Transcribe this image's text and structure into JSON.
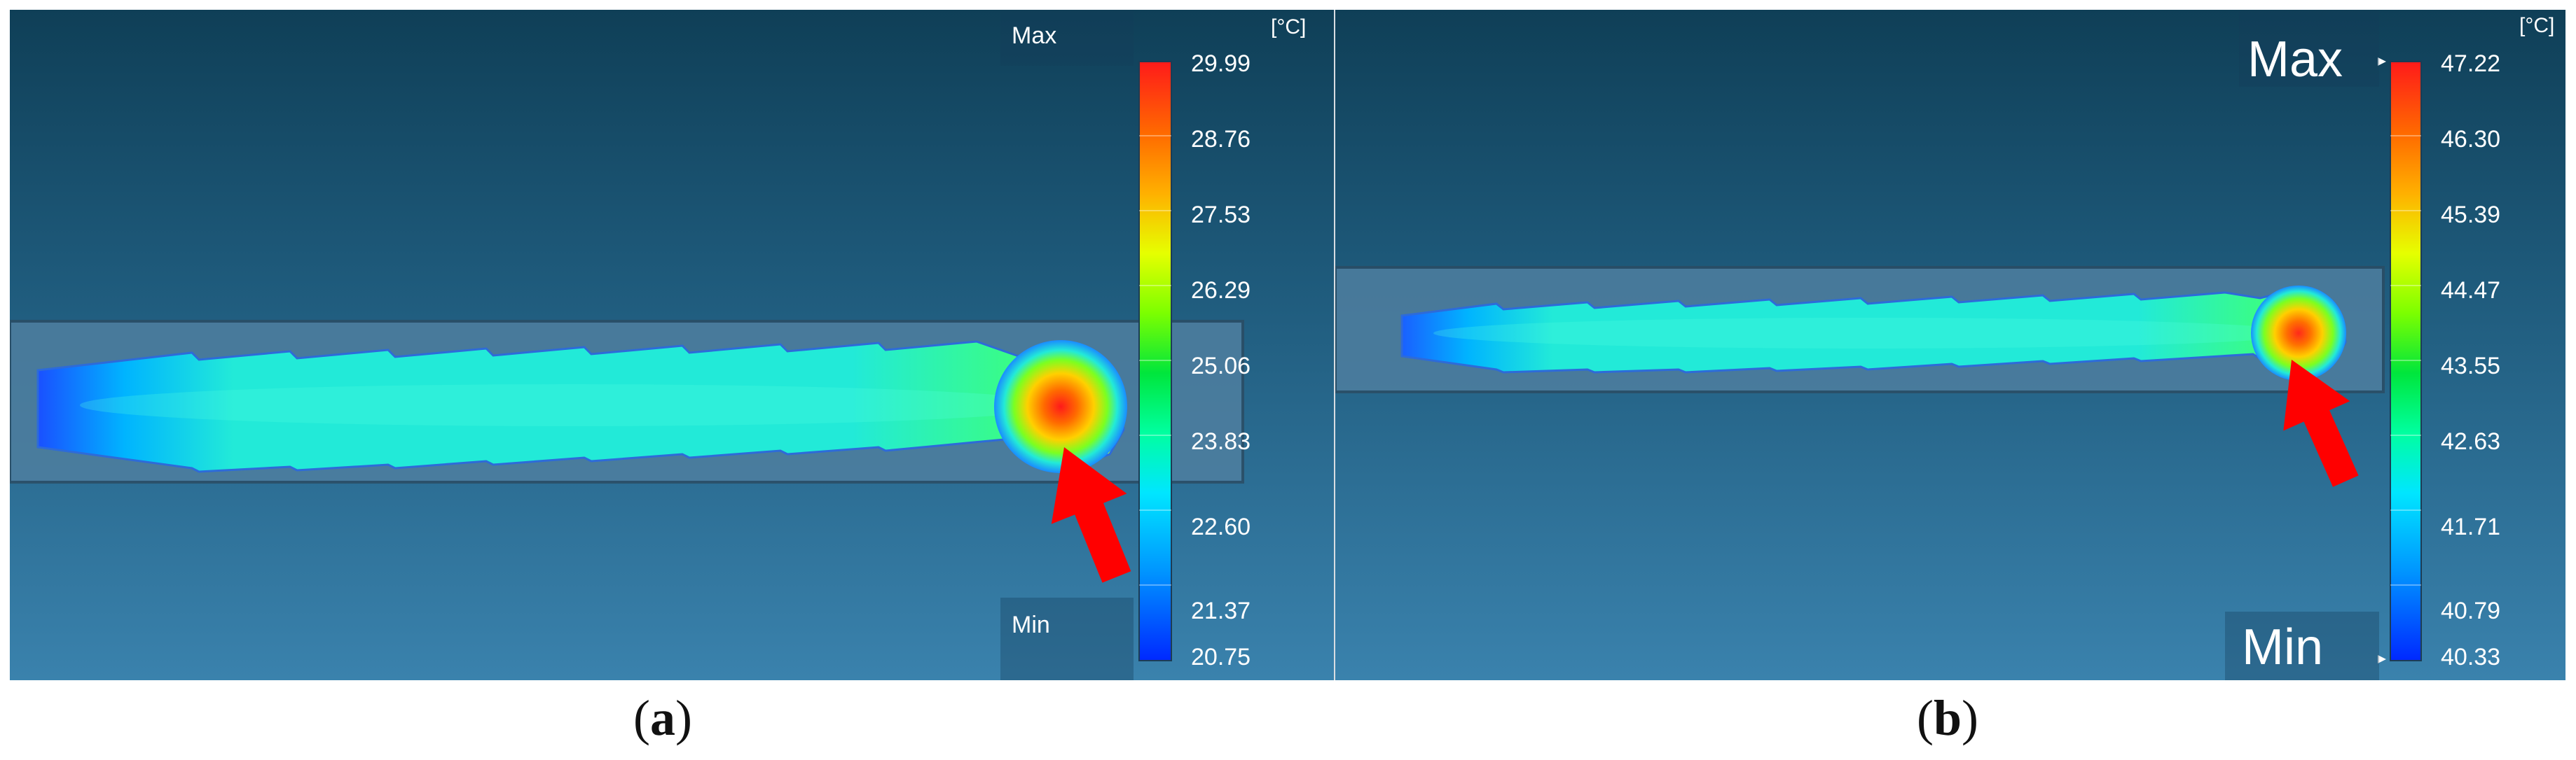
{
  "panels": [
    {
      "caption_open": "(",
      "caption_letter": "a",
      "caption_close": ")",
      "unit": "[°C]",
      "max_label": "Max",
      "min_label": "Min",
      "scale_ticks": [
        "29.99",
        "28.76",
        "27.53",
        "26.29",
        "25.06",
        "23.83",
        "22.60",
        "21.37",
        "20.75"
      ]
    },
    {
      "caption_open": "(",
      "caption_letter": "b",
      "caption_close": ")",
      "unit": "[°C]",
      "max_label": "Max",
      "min_label": "Min",
      "scale_ticks": [
        "47.22",
        "46.30",
        "45.39",
        "44.47",
        "43.55",
        "42.63",
        "41.71",
        "40.79",
        "40.33"
      ]
    }
  ],
  "colors": {
    "background_top": "#0f3f57",
    "background_bottom": "#3a82ad",
    "arrow": "#ff0000",
    "hotspot": "#ff2a1a",
    "body": "#22e6d6",
    "scale": [
      "#ff1a1a",
      "#ff6a00",
      "#ffb000",
      "#e6ff00",
      "#7cff00",
      "#00e63c",
      "#00ffa0",
      "#00e6ff",
      "#0096ff",
      "#0028ff"
    ]
  }
}
